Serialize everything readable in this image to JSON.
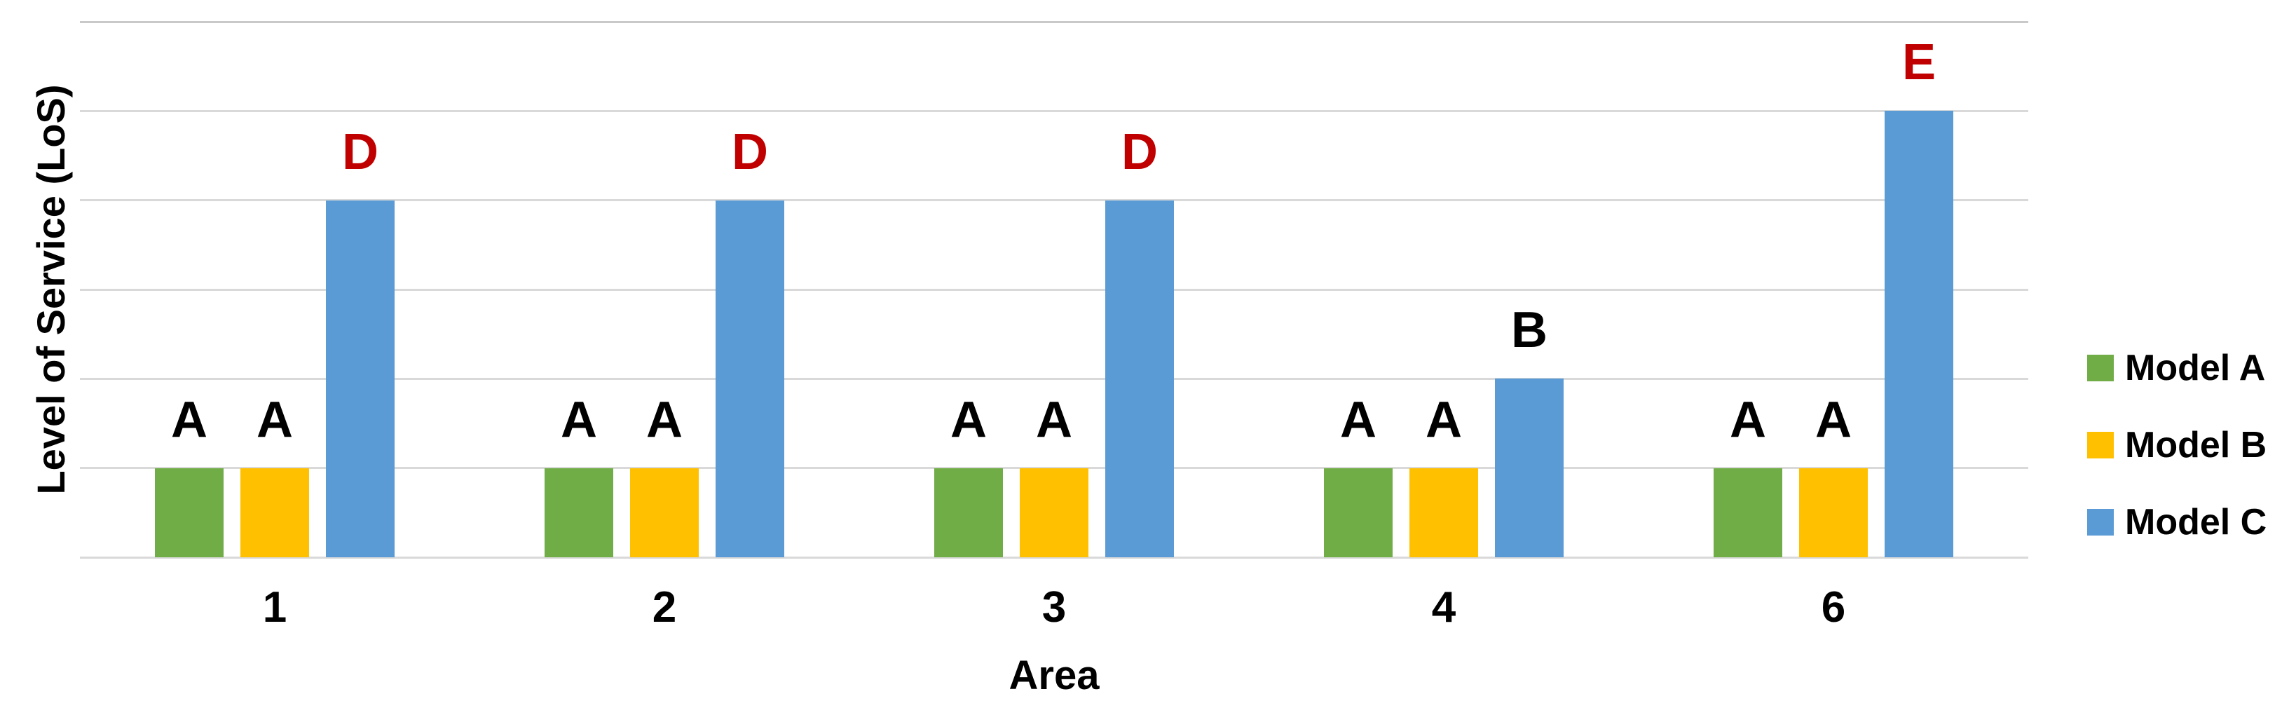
{
  "chart_data": {
    "type": "bar",
    "title": "",
    "xlabel": "Area",
    "ylabel": "Level of Service (LoS)",
    "categories": [
      "1",
      "2",
      "3",
      "4",
      "6"
    ],
    "y_axis": {
      "min": 0,
      "max": 6,
      "gridline_interval": 1,
      "tick_labels_visible": false
    },
    "grid": true,
    "gridline_color": "#D9D9D9",
    "background_color": "#FFFFFF",
    "text_color": "#000000",
    "highlight_label_color": "#C00000",
    "series": [
      {
        "name": "Model A",
        "color": "#70AD47",
        "values": [
          1,
          1,
          1,
          1,
          1
        ],
        "bar_labels": [
          "A",
          "A",
          "A",
          "A",
          "A"
        ],
        "bar_label_colors": [
          "#000000",
          "#000000",
          "#000000",
          "#000000",
          "#000000"
        ]
      },
      {
        "name": "Model B",
        "color": "#FFC000",
        "values": [
          1,
          1,
          1,
          1,
          1
        ],
        "bar_labels": [
          "A",
          "A",
          "A",
          "A",
          "A"
        ],
        "bar_label_colors": [
          "#000000",
          "#000000",
          "#000000",
          "#000000",
          "#000000"
        ]
      },
      {
        "name": "Model C",
        "color": "#5B9BD5",
        "values": [
          4,
          4,
          4,
          2,
          5
        ],
        "bar_labels": [
          "D",
          "D",
          "D",
          "B",
          "E"
        ],
        "bar_label_colors": [
          "#C00000",
          "#C00000",
          "#C00000",
          "#000000",
          "#C00000"
        ]
      }
    ],
    "legend": {
      "position": "right",
      "items": [
        "Model A",
        "Model B",
        "Model C"
      ]
    }
  }
}
